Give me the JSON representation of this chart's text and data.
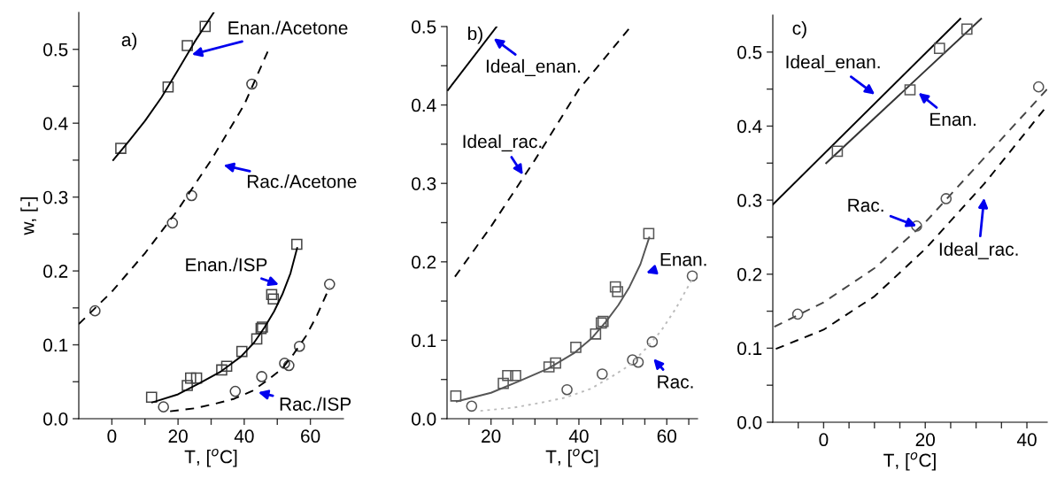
{
  "chart_data": [
    {
      "type": "scatter",
      "title": "a)",
      "xlabel": "T, [$^{o}$C]",
      "ylabel": "w, [-]",
      "xlim": [
        -10,
        70
      ],
      "ylim": [
        0,
        0.55
      ],
      "xticks": [
        0,
        {
          "value": 10,
          "label": null
        },
        20,
        {
          "value": 30,
          "label": null
        },
        40,
        {
          "value": 50,
          "label": null
        },
        60
      ],
      "yticks": [
        {
          "value": 0,
          "label": "0.0"
        },
        {
          "value": 0.05,
          "label": null
        },
        {
          "value": 0.1,
          "label": "0.1"
        },
        {
          "value": 0.15,
          "label": null
        },
        {
          "value": 0.2,
          "label": "0.2"
        },
        {
          "value": 0.25,
          "label": null
        },
        {
          "value": 0.3,
          "label": "0.3"
        },
        {
          "value": 0.35,
          "label": null
        },
        {
          "value": 0.4,
          "label": "0.4"
        },
        {
          "value": 0.45,
          "label": null
        },
        {
          "value": 0.5,
          "label": "0.5"
        }
      ],
      "series": [
        {
          "marker": "square",
          "color": "#444444",
          "x": [
            2.7,
            17,
            22.8,
            28.2
          ],
          "values": [
            0.366,
            0.449,
            0.505,
            0.531
          ]
        },
        {
          "type": "line",
          "line_style": "solid",
          "color": "#000000",
          "x": [
            0.4,
            5,
            10,
            15,
            20,
            25,
            30.8
          ],
          "values": [
            0.35,
            0.375,
            0.403,
            0.435,
            0.472,
            0.51,
            0.55
          ]
        },
        {
          "marker": "circle",
          "color": "#444444",
          "x": [
            -5.1,
            18.3,
            24.1,
            42.3
          ],
          "values": [
            0.146,
            0.265,
            0.302,
            0.453
          ]
        },
        {
          "type": "line",
          "line_style": "dashed",
          "color": "#000000",
          "x": [
            -10,
            0,
            10,
            20,
            30,
            40,
            47.3
          ],
          "values": [
            0.128,
            0.172,
            0.224,
            0.283,
            0.35,
            0.425,
            0.499
          ]
        },
        {
          "marker": "square",
          "color": "#444444",
          "x": [
            12,
            22.8,
            23.8,
            25.6,
            33.2,
            34.7,
            39.3,
            43.8,
            45.1,
            45.5,
            48.3,
            48.8,
            55.9
          ],
          "values": [
            0.029,
            0.045,
            0.055,
            0.055,
            0.066,
            0.071,
            0.091,
            0.108,
            0.122,
            0.124,
            0.168,
            0.162,
            0.236
          ]
        },
        {
          "type": "line",
          "line_style": "solid",
          "color": "#000000",
          "x": [
            12.2,
            20,
            26.5,
            33,
            39,
            43,
            46.2,
            49,
            51.5,
            54,
            56
          ],
          "values": [
            0.022,
            0.033,
            0.048,
            0.064,
            0.084,
            0.103,
            0.124,
            0.145,
            0.168,
            0.197,
            0.231
          ]
        },
        {
          "marker": "circle",
          "color": "#444444",
          "x": [
            15.6,
            37.3,
            45.3,
            52.2,
            53.5,
            56.7,
            65.8
          ],
          "values": [
            0.016,
            0.037,
            0.057,
            0.075,
            0.072,
            0.098,
            0.182
          ]
        },
        {
          "type": "line",
          "line_style": "dashed",
          "color": "#000000",
          "x": [
            17.6,
            25,
            31,
            37,
            42.6,
            47,
            51.5,
            55,
            58.7,
            62,
            65.8
          ],
          "values": [
            0.01,
            0.014,
            0.02,
            0.027,
            0.038,
            0.052,
            0.068,
            0.088,
            0.112,
            0.14,
            0.178
          ]
        }
      ],
      "annotations": [
        "Enan./Acetone",
        "Rac./Acetone",
        "Enan./ISP",
        "Rac./ISP"
      ]
    },
    {
      "type": "scatter",
      "title": "b)",
      "xlabel": "T, [$^{o}$C]",
      "xlim": [
        10,
        67
      ],
      "ylim": [
        0,
        0.5
      ],
      "xticks": [
        {
          "value": 15,
          "label": null
        },
        20,
        {
          "value": 25,
          "label": null
        },
        {
          "value": 30,
          "label": null
        },
        {
          "value": 35,
          "label": null
        },
        40,
        {
          "value": 45,
          "label": null
        },
        {
          "value": 50,
          "label": null
        },
        {
          "value": 55,
          "label": null
        },
        60,
        {
          "value": 65,
          "label": null
        }
      ],
      "yticks": [
        {
          "value": 0,
          "label": "0.0"
        },
        {
          "value": 0.05,
          "label": null
        },
        {
          "value": 0.1,
          "label": "0.1"
        },
        {
          "value": 0.15,
          "label": null
        },
        {
          "value": 0.2,
          "label": "0.2"
        },
        {
          "value": 0.25,
          "label": null
        },
        {
          "value": 0.3,
          "label": "0.3"
        },
        {
          "value": 0.35,
          "label": null
        },
        {
          "value": 0.4,
          "label": "0.4"
        },
        {
          "value": 0.45,
          "label": null
        },
        {
          "value": 0.5,
          "label": "0.5"
        }
      ],
      "series": [
        {
          "type": "line",
          "line_style": "solid",
          "color": "#000000",
          "x": [
            10.2,
            21.3
          ],
          "values": [
            0.419,
            0.5
          ]
        },
        {
          "type": "line",
          "line_style": "dashed",
          "color": "#000000",
          "x": [
            11.8,
            20,
            30,
            40,
            51.8
          ],
          "values": [
            0.181,
            0.245,
            0.33,
            0.42,
            0.5
          ]
        },
        {
          "marker": "square",
          "color": "#555555",
          "x": [
            12,
            22.8,
            23.8,
            25.6,
            33.2,
            34.7,
            39.3,
            43.8,
            45.1,
            45.5,
            48.3,
            48.8,
            55.9
          ],
          "values": [
            0.029,
            0.045,
            0.055,
            0.055,
            0.066,
            0.071,
            0.091,
            0.108,
            0.122,
            0.124,
            0.168,
            0.162,
            0.236
          ]
        },
        {
          "type": "line",
          "line_style": "solid",
          "color": "#555555",
          "x": [
            12.2,
            20,
            26.5,
            33,
            39,
            43,
            46.2,
            49,
            51.5,
            54,
            56
          ],
          "values": [
            0.022,
            0.033,
            0.048,
            0.064,
            0.084,
            0.103,
            0.124,
            0.145,
            0.168,
            0.197,
            0.231
          ]
        },
        {
          "marker": "circle",
          "color": "#555555",
          "x": [
            15.6,
            37.3,
            45.3,
            52.2,
            53.5,
            56.7,
            65.8
          ],
          "values": [
            0.016,
            0.037,
            0.057,
            0.075,
            0.072,
            0.098,
            0.182
          ]
        },
        {
          "type": "line",
          "line_style": "dotted",
          "color": "#bbbbbb",
          "x": [
            17.6,
            25,
            31,
            37,
            42.6,
            47,
            51.5,
            55,
            58.7,
            62,
            65.8
          ],
          "values": [
            0.01,
            0.014,
            0.02,
            0.027,
            0.038,
            0.052,
            0.068,
            0.088,
            0.112,
            0.14,
            0.178
          ]
        }
      ],
      "annotations": [
        "Ideal_enan.",
        "Ideal_rac.",
        "Enan.",
        "Rac."
      ]
    },
    {
      "type": "scatter",
      "title": "c)",
      "xlabel": "T, [$^{o}$C]",
      "xlim": [
        -10,
        44
      ],
      "ylim": [
        0,
        0.55
      ],
      "xticks": [
        {
          "value": -5,
          "label": null
        },
        0,
        {
          "value": 5,
          "label": null
        },
        {
          "value": 10,
          "label": null
        },
        {
          "value": 15,
          "label": null
        },
        20,
        {
          "value": 25,
          "label": null
        },
        {
          "value": 30,
          "label": null
        },
        {
          "value": 35,
          "label": null
        },
        40
      ],
      "yticks": [
        {
          "value": 0,
          "label": "0.0"
        },
        {
          "value": 0.05,
          "label": null
        },
        {
          "value": 0.1,
          "label": "0.1"
        },
        {
          "value": 0.15,
          "label": null
        },
        {
          "value": 0.2,
          "label": "0.2"
        },
        {
          "value": 0.25,
          "label": null
        },
        {
          "value": 0.3,
          "label": "0.3"
        },
        {
          "value": 0.35,
          "label": null
        },
        {
          "value": 0.4,
          "label": "0.4"
        },
        {
          "value": 0.45,
          "label": null
        },
        {
          "value": 0.5,
          "label": "0.5"
        }
      ],
      "series": [
        {
          "type": "line",
          "line_style": "solid",
          "color": "#000000",
          "x": [
            -10,
            26.9
          ],
          "values": [
            0.294,
            0.545
          ]
        },
        {
          "type": "line",
          "line_style": "solid",
          "color": "#333333",
          "x": [
            0.5,
            31
          ],
          "values": [
            0.35,
            0.545
          ]
        },
        {
          "marker": "square",
          "color": "#555555",
          "x": [
            2.7,
            17,
            22.8,
            28.2
          ],
          "values": [
            0.366,
            0.449,
            0.505,
            0.531
          ]
        },
        {
          "type": "line",
          "line_style": "dashed",
          "color": "#444444",
          "x": [
            -9.7,
            0,
            10,
            20,
            30,
            44
          ],
          "values": [
            0.129,
            0.162,
            0.208,
            0.27,
            0.345,
            0.45
          ]
        },
        {
          "marker": "circle",
          "color": "#555555",
          "x": [
            -5.1,
            18.3,
            24.1,
            42.3
          ],
          "values": [
            0.146,
            0.265,
            0.302,
            0.453
          ]
        },
        {
          "type": "line",
          "line_style": "dashed",
          "color": "#000000",
          "x": [
            -9.4,
            0,
            10,
            20,
            31.6,
            43.8
          ],
          "values": [
            0.099,
            0.125,
            0.17,
            0.234,
            0.322,
            0.426
          ]
        }
      ],
      "annotations": [
        "Ideal_enan.",
        "Enan.",
        {
          "text": "Rac.",
          "x": 18.3,
          "y": 0.265
        },
        "Ideal_rac."
      ]
    }
  ]
}
